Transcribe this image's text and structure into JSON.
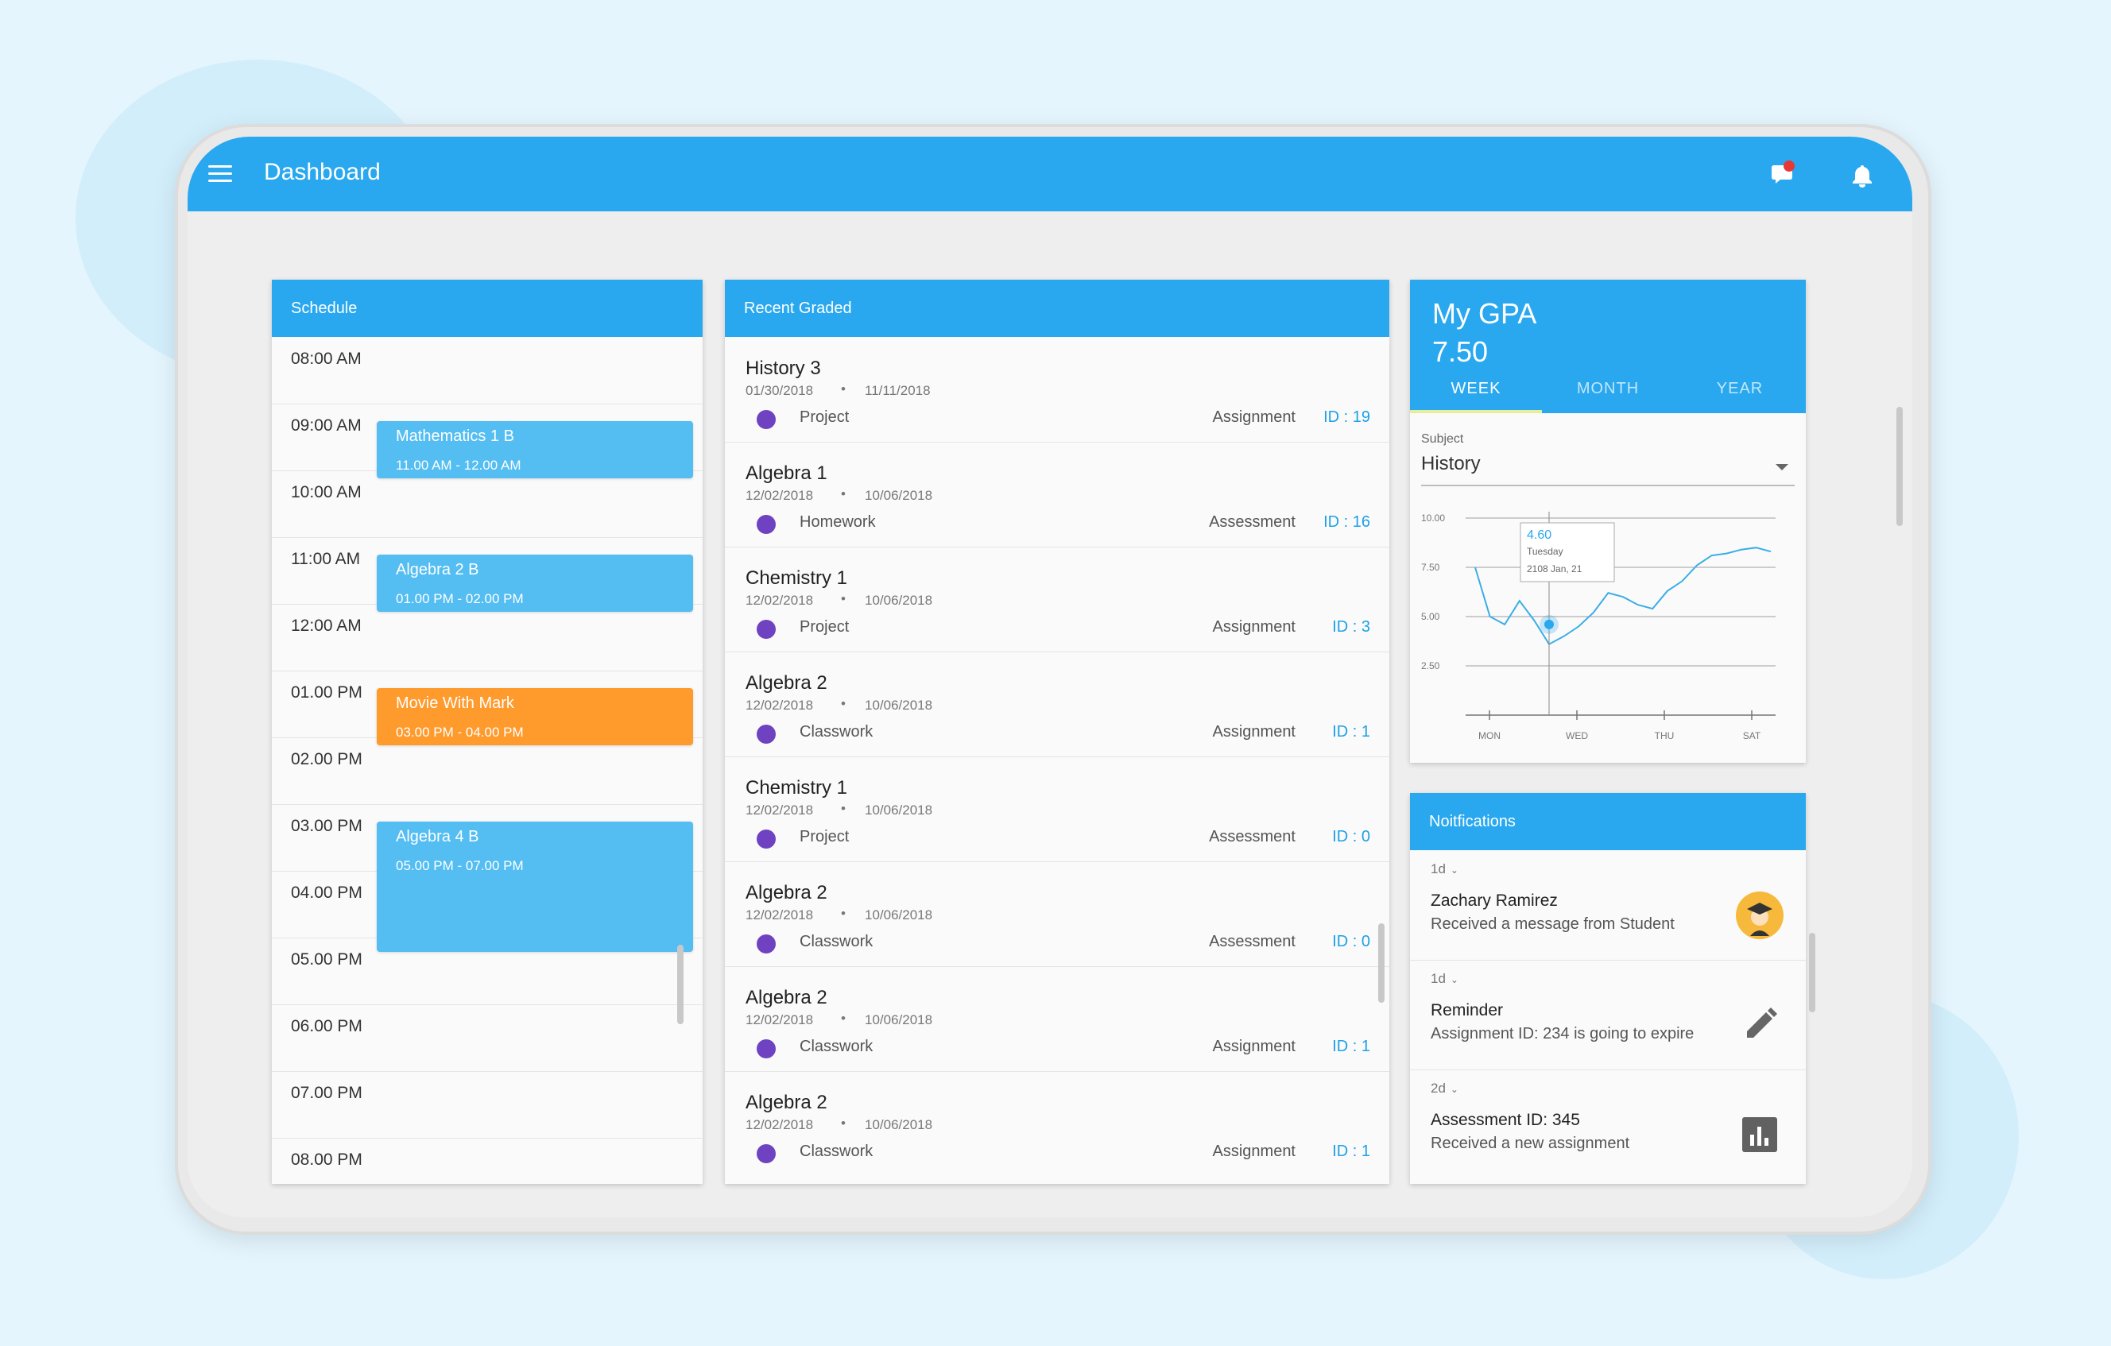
{
  "app": {
    "title": "Dashboard"
  },
  "icons": {
    "menu": "menu-icon",
    "chat": "chat-bubble-icon",
    "notifications": "bell-icon",
    "chat_badge_color": "#e53935"
  },
  "colors": {
    "primary": "#29a8ef",
    "accent_orange": "#ff9a2c",
    "event_blue": "#54bdf2",
    "dot_purple": "#6f42c1",
    "id_blue": "#1da1e6"
  },
  "schedule": {
    "title": "Schedule",
    "times": [
      "08:00 AM",
      "09:00 AM",
      "10:00 AM",
      "11:00 AM",
      "12:00 AM",
      "01.00 PM",
      "02.00 PM",
      "03.00 PM",
      "04.00 PM",
      "05.00 PM",
      "06.00 PM",
      "07.00 PM",
      "08.00 PM"
    ],
    "events": [
      {
        "title": "Mathematics 1 B",
        "time": "11.00 AM - 12.00 AM",
        "color": "#54bdf2"
      },
      {
        "title": "Algebra 2 B",
        "time": "01.00 PM - 02.00 PM",
        "color": "#54bdf2"
      },
      {
        "title": "Movie With Mark",
        "time": "03.00 PM - 04.00 PM",
        "color": "#ff9a2c"
      },
      {
        "title": "Algebra 4 B",
        "time": "05.00 PM - 07.00 PM",
        "color": "#54bdf2"
      }
    ]
  },
  "recent_graded": {
    "title": "Recent Graded",
    "separator": "•",
    "items": [
      {
        "title": "History 3",
        "date1": "01/30/2018",
        "date2": "11/11/2018",
        "category": "Project",
        "type": "Assignment",
        "id": "ID : 19"
      },
      {
        "title": "Algebra 1",
        "date1": "12/02/2018",
        "date2": "10/06/2018",
        "category": "Homework",
        "type": "Assessment",
        "id": "ID : 16"
      },
      {
        "title": "Chemistry 1",
        "date1": "12/02/2018",
        "date2": "10/06/2018",
        "category": "Project",
        "type": "Assignment",
        "id": "ID : 3"
      },
      {
        "title": "Algebra 2",
        "date1": "12/02/2018",
        "date2": "10/06/2018",
        "category": "Classwork",
        "type": "Assignment",
        "id": "ID : 1"
      },
      {
        "title": "Chemistry 1",
        "date1": "12/02/2018",
        "date2": "10/06/2018",
        "category": "Project",
        "type": "Assessment",
        "id": "ID : 0"
      },
      {
        "title": "Algebra 2",
        "date1": "12/02/2018",
        "date2": "10/06/2018",
        "category": "Classwork",
        "type": "Assessment",
        "id": "ID : 0"
      },
      {
        "title": "Algebra 2",
        "date1": "12/02/2018",
        "date2": "10/06/2018",
        "category": "Classwork",
        "type": "Assignment",
        "id": "ID : 1"
      },
      {
        "title": "Algebra 2",
        "date1": "12/02/2018",
        "date2": "10/06/2018",
        "category": "Classwork",
        "type": "Assignment",
        "id": "ID : 1"
      }
    ]
  },
  "gpa": {
    "title": "My GPA",
    "value": "7.50",
    "tabs": [
      "WEEK",
      "MONTH",
      "YEAR"
    ],
    "active_tab": "WEEK",
    "subject_label": "Subject",
    "subject_value": "History",
    "tooltip": {
      "value": "4.60",
      "day": "Tuesday",
      "date": "2108 Jan, 21"
    }
  },
  "chart_data": {
    "type": "line",
    "title": "",
    "xlabel": "",
    "ylabel": "",
    "x_ticks": [
      "MON",
      "WED",
      "THU",
      "SAT"
    ],
    "y_ticks": [
      "10.00",
      "7.50",
      "5.00",
      "2.50"
    ],
    "ylim": [
      0,
      10
    ],
    "series": [
      {
        "values": [
          7.5,
          5.0,
          4.6,
          5.8,
          4.8,
          3.6,
          4.0,
          4.5,
          5.2,
          6.2,
          6.0,
          5.6,
          5.4,
          6.3,
          6.8,
          7.6,
          8.1,
          8.2,
          8.4,
          8.5,
          8.3
        ]
      }
    ],
    "highlight": {
      "label": "Tuesday",
      "value": 4.6
    },
    "grid": true,
    "legend": "none"
  },
  "notifications": {
    "title": "Noitfications",
    "items": [
      {
        "ago": "1d",
        "title": "Zachary Ramirez",
        "text": "Received a message from Student",
        "icon": "graduate-avatar-icon"
      },
      {
        "ago": "1d",
        "title": "Reminder",
        "text": "Assignment ID: 234 is going to expire",
        "icon": "pencil-icon"
      },
      {
        "ago": "2d",
        "title": "Assessment ID: 345",
        "text": "Received a new assignment",
        "icon": "bar-chart-icon"
      }
    ]
  }
}
